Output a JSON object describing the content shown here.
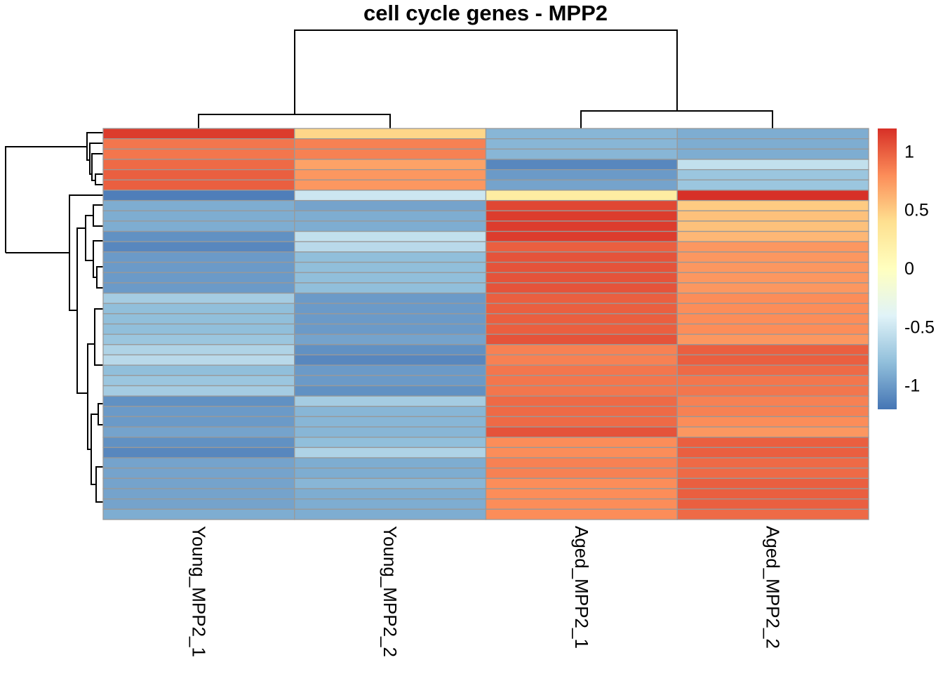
{
  "chart_data": {
    "type": "heatmap",
    "title": "cell cycle genes - MPP2",
    "columns": [
      "Young_MPP2_1",
      "Young_MPP2_2",
      "Aged_MPP2_1",
      "Aged_MPP2_2"
    ],
    "values": [
      [
        1.15,
        0.45,
        -0.85,
        -0.9
      ],
      [
        0.9,
        0.85,
        -0.85,
        -0.9
      ],
      [
        0.9,
        0.85,
        -0.85,
        -0.9
      ],
      [
        0.95,
        0.7,
        -1.1,
        -0.55
      ],
      [
        1.0,
        0.75,
        -1.0,
        -0.75
      ],
      [
        1.0,
        0.75,
        -0.95,
        -0.75
      ],
      [
        -1.15,
        -0.5,
        0.25,
        1.2
      ],
      [
        -0.9,
        -0.95,
        1.1,
        0.5
      ],
      [
        -0.9,
        -0.9,
        1.15,
        0.55
      ],
      [
        -0.9,
        -0.9,
        1.15,
        0.55
      ],
      [
        -1.05,
        -0.55,
        1.15,
        0.6
      ],
      [
        -1.1,
        -0.6,
        1.0,
        0.75
      ],
      [
        -1.0,
        -0.8,
        1.05,
        0.75
      ],
      [
        -1.0,
        -0.8,
        1.05,
        0.75
      ],
      [
        -1.0,
        -0.8,
        1.05,
        0.75
      ],
      [
        -1.0,
        -0.8,
        1.05,
        0.75
      ],
      [
        -0.7,
        -1.0,
        1.0,
        0.8
      ],
      [
        -0.8,
        -1.0,
        1.0,
        0.8
      ],
      [
        -0.8,
        -1.0,
        1.0,
        0.8
      ],
      [
        -0.8,
        -1.0,
        1.0,
        0.8
      ],
      [
        -0.75,
        -0.95,
        1.05,
        0.75
      ],
      [
        -0.65,
        -1.05,
        0.85,
        1.0
      ],
      [
        -0.6,
        -1.1,
        0.85,
        1.0
      ],
      [
        -0.8,
        -1.0,
        0.9,
        0.95
      ],
      [
        -0.75,
        -1.0,
        0.9,
        0.9
      ],
      [
        -0.7,
        -1.05,
        0.9,
        0.9
      ],
      [
        -1.05,
        -0.7,
        0.95,
        0.85
      ],
      [
        -1.0,
        -0.85,
        0.95,
        0.85
      ],
      [
        -1.0,
        -0.85,
        0.95,
        0.8
      ],
      [
        -0.95,
        -0.85,
        1.05,
        0.75
      ],
      [
        -1.05,
        -0.8,
        0.8,
        1.0
      ],
      [
        -1.1,
        -0.65,
        0.8,
        1.0
      ],
      [
        -0.95,
        -0.9,
        0.85,
        0.95
      ],
      [
        -0.95,
        -0.9,
        0.85,
        0.95
      ],
      [
        -0.95,
        -0.85,
        0.8,
        1.0
      ],
      [
        -0.95,
        -0.9,
        0.8,
        1.0
      ],
      [
        -0.95,
        -0.9,
        0.8,
        1.0
      ],
      [
        -0.9,
        -0.9,
        0.8,
        0.95
      ]
    ],
    "color_scale": {
      "range": [
        -1.2,
        1.2
      ],
      "stops": [
        {
          "value": -1.2,
          "color": "#4575b4"
        },
        {
          "value": -0.8,
          "color": "#91bfdb"
        },
        {
          "value": -0.4,
          "color": "#e0f3f8"
        },
        {
          "value": 0,
          "color": "#ffffbf"
        },
        {
          "value": 0.4,
          "color": "#fee090"
        },
        {
          "value": 0.8,
          "color": "#fc8d59"
        },
        {
          "value": 1.2,
          "color": "#d73027"
        }
      ],
      "tick_values": [
        1,
        0.5,
        0,
        -0.5,
        -1
      ],
      "tick_labels": [
        "1",
        "0.5",
        "0",
        "-0.5",
        "-1"
      ]
    },
    "cell_border_color": "#999999",
    "column_dendrogram": true,
    "row_dendrogram": true
  }
}
